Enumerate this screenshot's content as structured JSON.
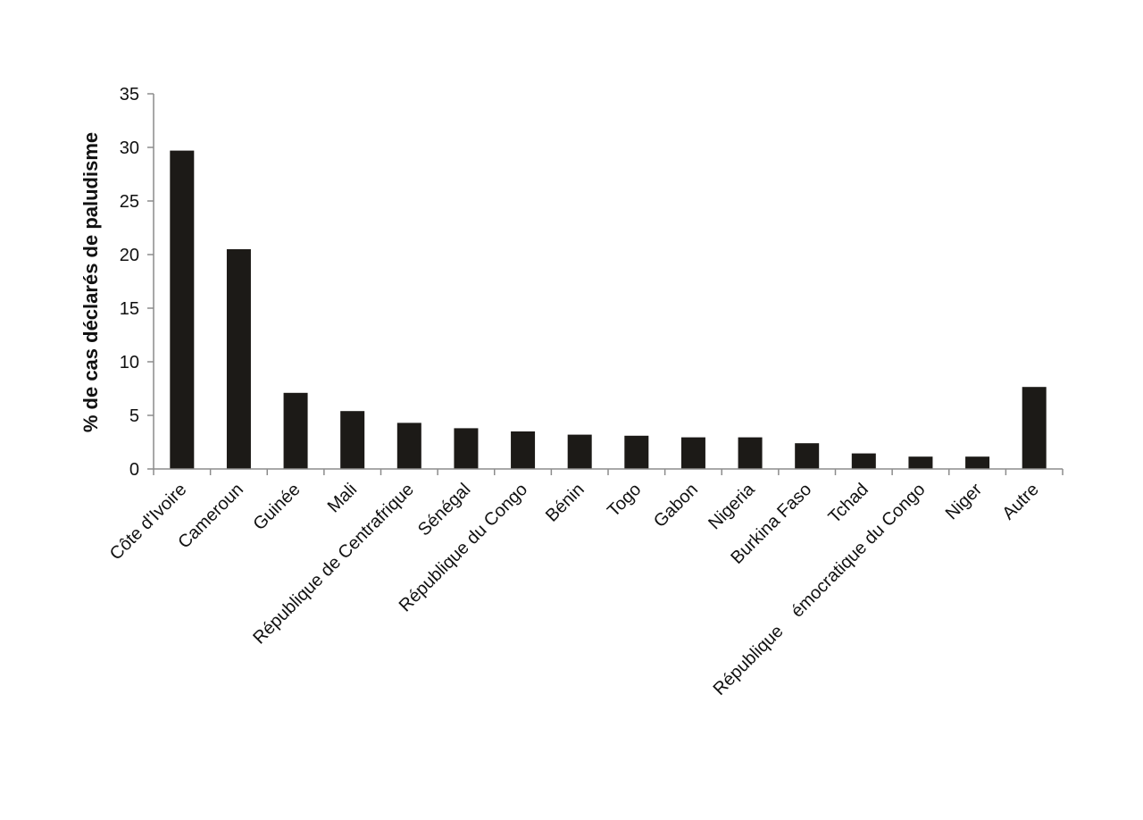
{
  "chart_data": {
    "type": "bar",
    "ylabel": "% de cas déclarés de paludisme",
    "xlabel": "",
    "ylim": [
      0,
      35
    ],
    "yticks": [
      0,
      5,
      10,
      15,
      20,
      25,
      30,
      35
    ],
    "grid": false,
    "bar_color": "#1c1a17",
    "categories": [
      "Côte d'Ivoire",
      "Cameroun",
      "Guinée",
      "Mali",
      "République de Centrafrique",
      "Sénégal",
      "République du Congo",
      "Bénin",
      "Togo",
      "Gabon",
      "Nigeria",
      "Burkina Faso",
      "Tchad",
      "République    émocratique du Congo",
      "Niger",
      "Autre"
    ],
    "values": [
      29.7,
      20.5,
      7.1,
      5.4,
      4.3,
      3.8,
      3.5,
      3.2,
      3.1,
      2.95,
      2.95,
      2.4,
      1.45,
      1.15,
      1.15,
      7.65
    ]
  }
}
